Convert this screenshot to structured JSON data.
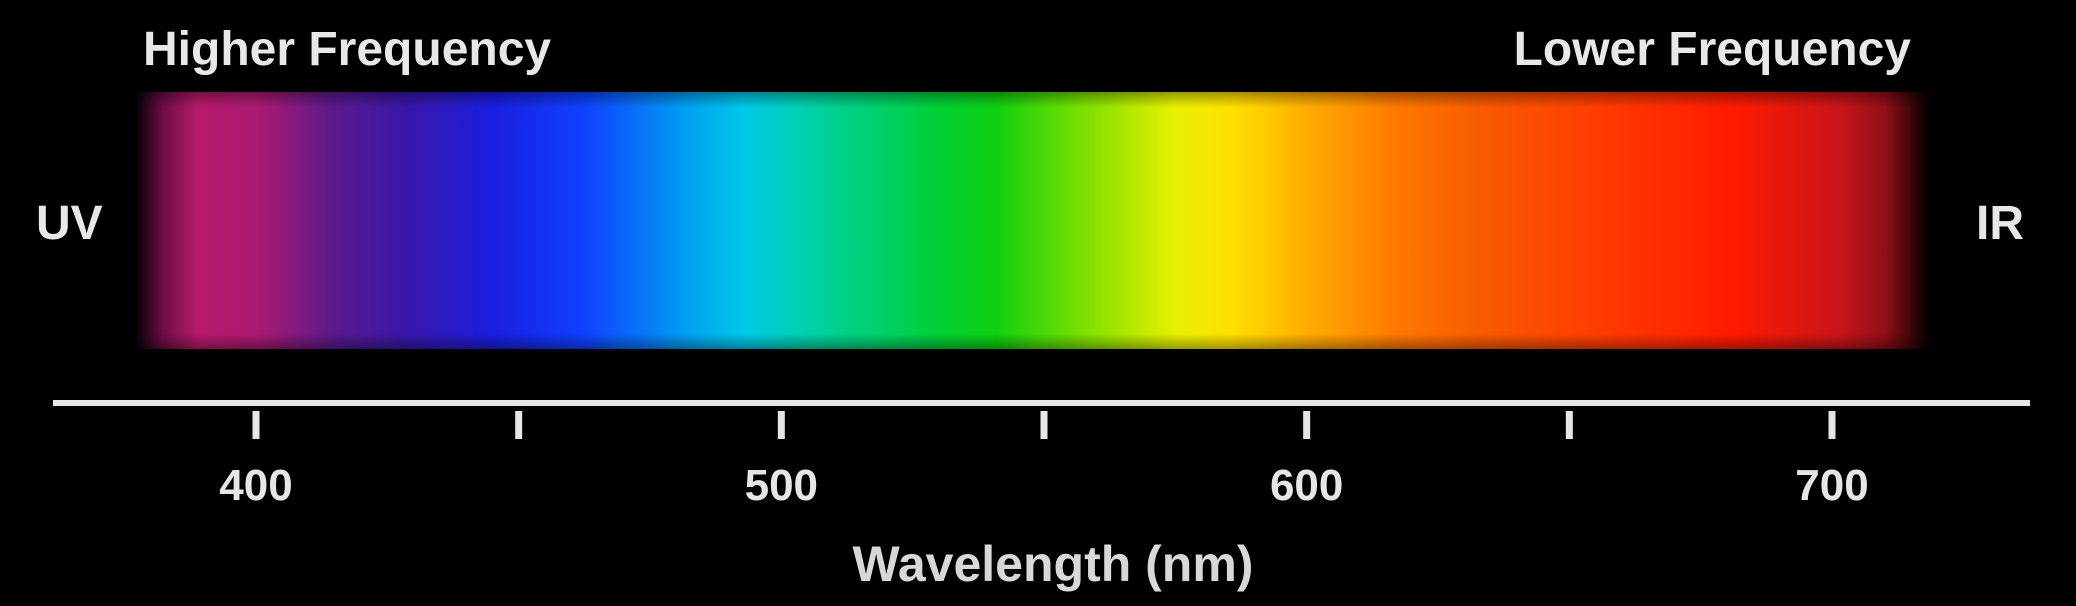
{
  "top_labels": {
    "left": "Higher Frequency",
    "right": "Lower Frequency"
  },
  "side_labels": {
    "left": "UV",
    "right": "IR"
  },
  "axis": {
    "title": "Wavelength (nm)",
    "min": 360,
    "max": 730,
    "major_ticks": [
      400,
      500,
      600,
      700
    ],
    "minor_ticks": [
      450,
      550,
      650
    ],
    "line_color": "#e6e6e6"
  },
  "spectrum": {
    "colors": [
      "#b71a6a",
      "#3a16a8",
      "#1a1ee0",
      "#00c8e8",
      "#10d010",
      "#ffe000",
      "#ff7a00",
      "#ff1a00",
      "#c8141a"
    ]
  }
}
